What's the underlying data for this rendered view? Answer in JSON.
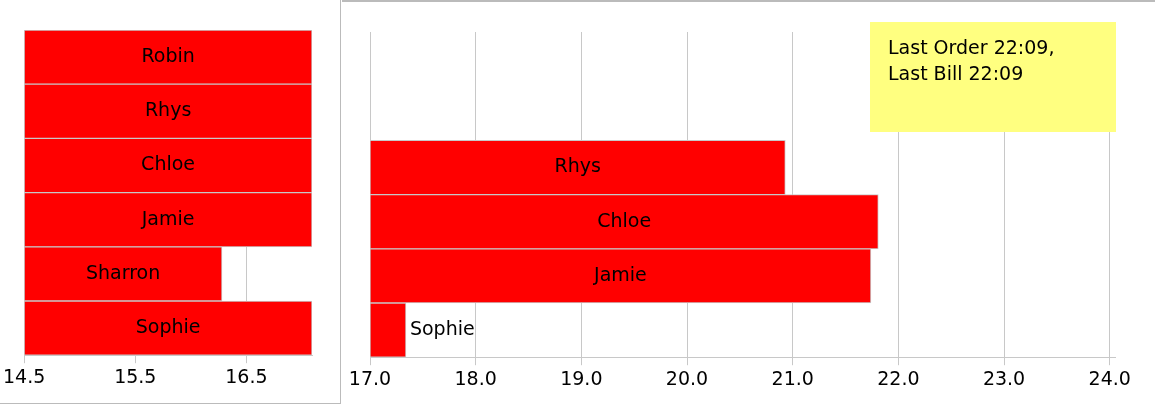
{
  "chart_data": [
    {
      "type": "bar",
      "orientation": "horizontal",
      "categories": [
        "Robin",
        "Rhys",
        "Chloe",
        "Jamie",
        "Sharron",
        "Sophie"
      ],
      "base": [
        14.5,
        14.5,
        14.5,
        14.5,
        14.5,
        14.5
      ],
      "values": [
        2.59,
        2.59,
        2.59,
        2.59,
        1.78,
        2.59
      ],
      "color": "#ff0000",
      "xlim": [
        14.5,
        17.09
      ],
      "xticks": [
        {
          "value": 14.5,
          "label": "14.5"
        },
        {
          "value": 15.5,
          "label": "15.5"
        },
        {
          "value": 16.5,
          "label": "16.5"
        }
      ],
      "grid": "x",
      "tick_labels": "x"
    },
    {
      "type": "bar",
      "orientation": "horizontal",
      "categories": [
        null,
        null,
        "Rhys",
        "Chloe",
        "Jamie",
        "Sophie"
      ],
      "base": [
        null,
        null,
        17.0,
        17.0,
        17.0,
        17.0
      ],
      "values": [
        null,
        null,
        3.93,
        4.81,
        4.74,
        0.34
      ],
      "color": "#ff0000",
      "xlim": [
        17.0,
        24.05
      ],
      "xticks": [
        {
          "value": 17,
          "label": "17.0"
        },
        {
          "value": 18,
          "label": "18.0"
        },
        {
          "value": 19,
          "label": "19.0"
        },
        {
          "value": 20,
          "label": "20.0"
        },
        {
          "value": 21,
          "label": "21.0"
        },
        {
          "value": 22,
          "label": "22.0"
        },
        {
          "value": 23,
          "label": "23.0"
        },
        {
          "value": 24,
          "label": "24.0"
        }
      ],
      "grid": "x",
      "tick_labels": "x",
      "annotations": [
        "Last Order 22:09,\nLast Bill 22:09"
      ]
    }
  ]
}
